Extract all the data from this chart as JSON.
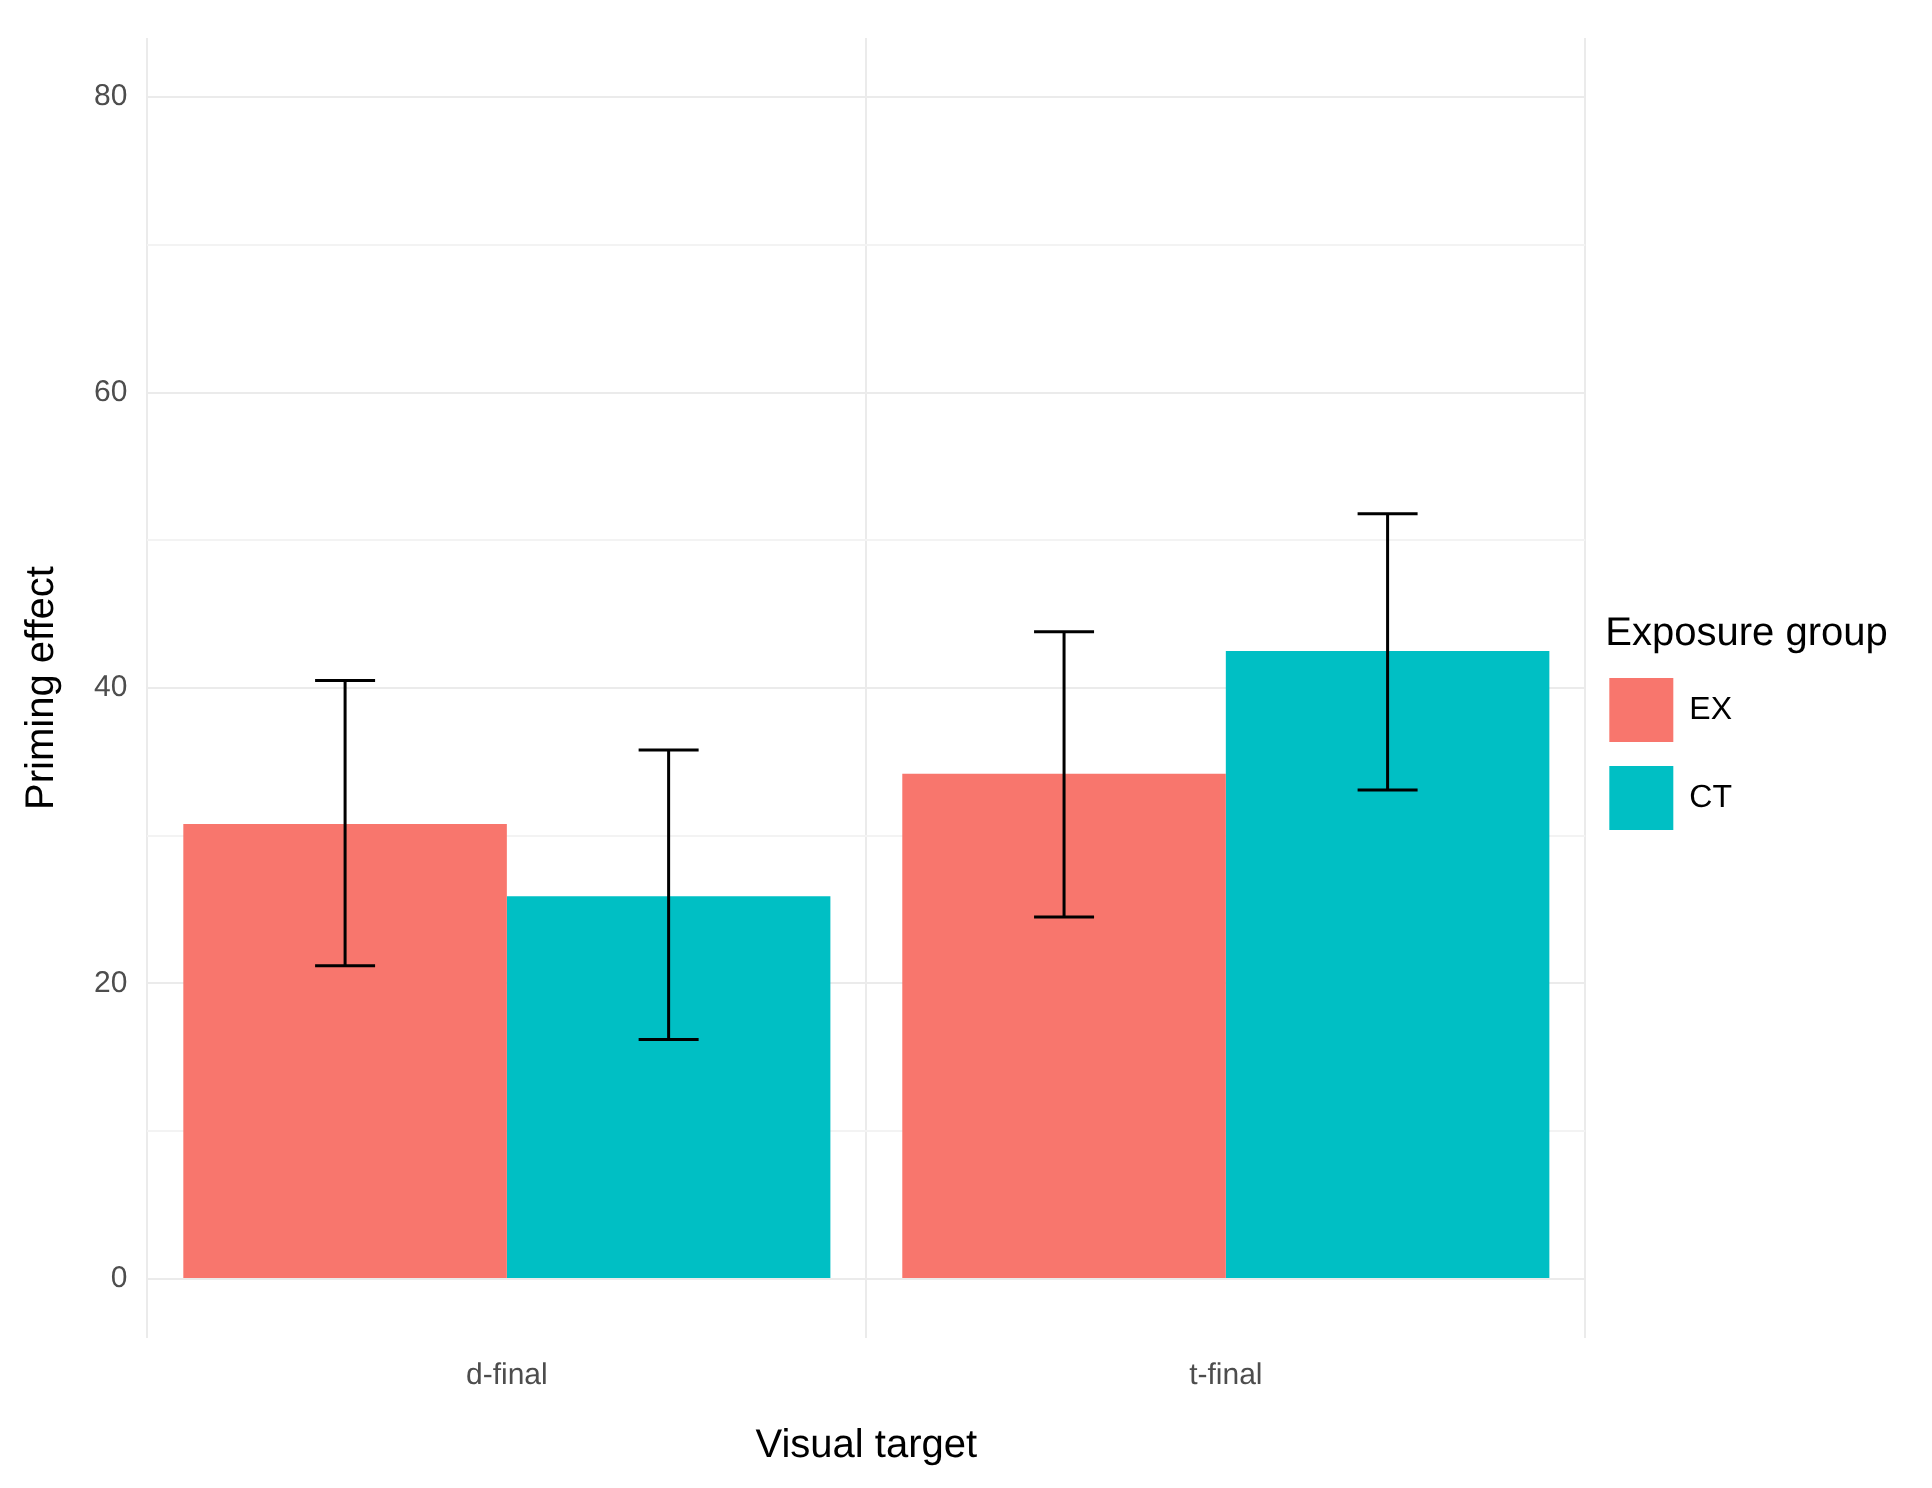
{
  "chart_data": {
    "type": "bar",
    "xlabel": "Visual target",
    "ylabel": "Priming effect",
    "legend_title": "Exposure group",
    "categories": [
      "d-final",
      "t-final"
    ],
    "series": [
      {
        "name": "EX",
        "color": "#f8766d",
        "values": [
          30.8,
          34.2
        ],
        "errors": [
          [
            21.2,
            40.5
          ],
          [
            24.5,
            43.8
          ]
        ]
      },
      {
        "name": "CT",
        "color": "#00bfc4",
        "values": [
          25.9,
          42.5
        ],
        "errors": [
          [
            16.2,
            35.8
          ],
          [
            33.1,
            51.8
          ]
        ]
      }
    ],
    "ylim": [
      -4,
      84
    ],
    "yticks": [
      0,
      {
        "value": 10,
        "label": null
      },
      20,
      {
        "value": 30,
        "label": null
      },
      40,
      {
        "value": 50,
        "label": null
      },
      60,
      {
        "value": 70,
        "label": null
      },
      80
    ],
    "grid": true,
    "legend": "right"
  }
}
